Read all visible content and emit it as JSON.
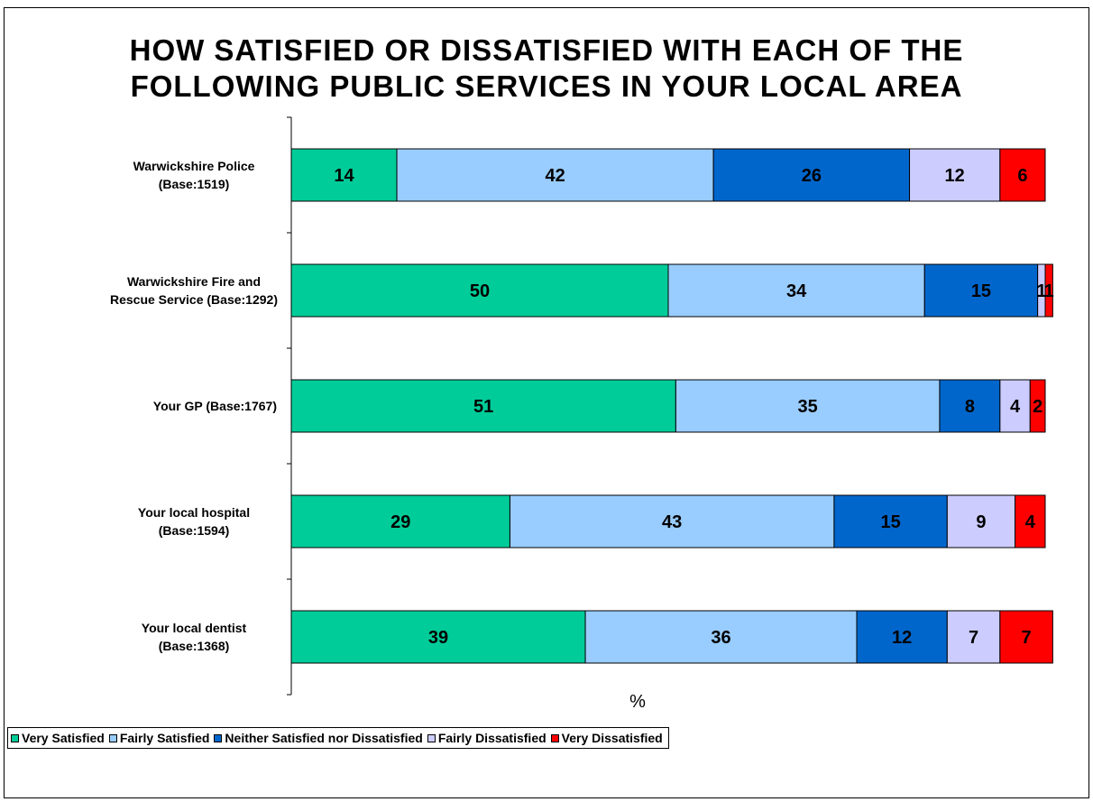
{
  "chart_data": {
    "type": "bar",
    "orientation": "horizontal",
    "stacked": true,
    "title": "HOW SATISFIED OR DISSATISFIED WITH EACH OF THE FOLLOWING PUBLIC SERVICES IN YOUR LOCAL AREA",
    "title_lines": [
      "HOW SATISFIED OR DISSATISFIED WITH EACH OF THE",
      "FOLLOWING PUBLIC SERVICES IN YOUR LOCAL AREA"
    ],
    "xlabel": "%",
    "ylabel": "",
    "xlim": [
      0,
      100
    ],
    "grid": false,
    "legend_position": "bottom-left",
    "categories": [
      {
        "label": "Warwickshire Police (Base:1519)",
        "lines": [
          "Warwickshire Police",
          "(Base:1519)"
        ]
      },
      {
        "label": "Warwickshire Fire and Rescue Service (Base:1292)",
        "lines": [
          "Warwickshire Fire and",
          "Rescue Service (Base:1292)"
        ]
      },
      {
        "label": "Your GP (Base:1767)",
        "lines": [
          "Your GP (Base:1767)"
        ]
      },
      {
        "label": "Your local hospital (Base:1594)",
        "lines": [
          "Your local hospital",
          "(Base:1594)"
        ]
      },
      {
        "label": "Your local dentist (Base:1368)",
        "lines": [
          "Your local dentist",
          "(Base:1368)"
        ]
      }
    ],
    "series": [
      {
        "name": "Very Satisfied",
        "color": "#00CC99",
        "values": [
          14,
          50,
          51,
          29,
          39
        ]
      },
      {
        "name": "Fairly Satisfied",
        "color": "#99CCFF",
        "values": [
          42,
          34,
          35,
          43,
          36
        ]
      },
      {
        "name": "Neither Satisfied nor Dissatisfied",
        "color": "#0066CC",
        "values": [
          26,
          15,
          8,
          15,
          12
        ]
      },
      {
        "name": "Fairly Dissatisfied",
        "color": "#CCCCFF",
        "values": [
          12,
          1,
          4,
          9,
          7
        ]
      },
      {
        "name": "Very Dissatisfied",
        "color": "#FF0000",
        "values": [
          6,
          1,
          2,
          4,
          7
        ]
      }
    ]
  }
}
